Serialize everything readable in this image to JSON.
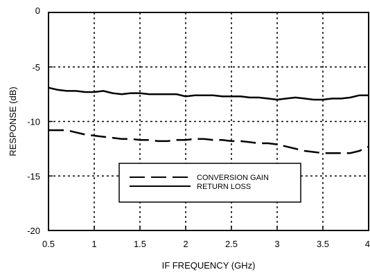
{
  "chart_data": {
    "type": "line",
    "title": "",
    "xlabel": "IF FREQUENCY (GHz)",
    "ylabel": "RESPONSE (dB)",
    "xlim": [
      0.5,
      4
    ],
    "ylim": [
      -20,
      0
    ],
    "xticks": [
      0.5,
      1,
      1.5,
      2,
      2.5,
      3,
      3.5,
      4
    ],
    "xtick_labels": [
      "0.5",
      "1",
      "1.5",
      "2",
      "2.5",
      "3",
      "3.5",
      "4"
    ],
    "yticks": [
      -20,
      -15,
      -10,
      -5,
      0
    ],
    "ytick_labels": [
      "-20",
      "-15",
      "-10",
      "-5",
      "0"
    ],
    "grid": true,
    "legend_position": "lower-center",
    "series": [
      {
        "name": "CONVERSION GAIN",
        "style": "dashed",
        "color": "#000000",
        "x": [
          0.5,
          0.6,
          0.7,
          0.8,
          0.9,
          1.0,
          1.1,
          1.2,
          1.3,
          1.4,
          1.5,
          1.6,
          1.7,
          1.8,
          1.9,
          2.0,
          2.1,
          2.2,
          2.3,
          2.4,
          2.5,
          2.6,
          2.7,
          2.8,
          2.9,
          3.0,
          3.1,
          3.2,
          3.3,
          3.4,
          3.5,
          3.6,
          3.7,
          3.8,
          3.9,
          4.0
        ],
        "y": [
          -10.8,
          -10.8,
          -10.8,
          -11.0,
          -11.2,
          -11.3,
          -11.4,
          -11.5,
          -11.6,
          -11.6,
          -11.7,
          -11.7,
          -11.8,
          -11.8,
          -11.7,
          -11.7,
          -11.6,
          -11.6,
          -11.7,
          -11.7,
          -11.8,
          -11.8,
          -11.9,
          -12.0,
          -12.0,
          -12.1,
          -12.3,
          -12.5,
          -12.7,
          -12.8,
          -12.9,
          -12.9,
          -12.9,
          -12.9,
          -12.7,
          -12.3
        ]
      },
      {
        "name": "RETURN LOSS",
        "style": "solid",
        "color": "#000000",
        "x": [
          0.5,
          0.6,
          0.7,
          0.8,
          0.9,
          1.0,
          1.1,
          1.2,
          1.3,
          1.4,
          1.5,
          1.6,
          1.7,
          1.8,
          1.9,
          2.0,
          2.1,
          2.2,
          2.3,
          2.4,
          2.5,
          2.6,
          2.7,
          2.8,
          2.9,
          3.0,
          3.1,
          3.2,
          3.3,
          3.4,
          3.5,
          3.6,
          3.7,
          3.8,
          3.9,
          4.0
        ],
        "y": [
          -6.9,
          -7.1,
          -7.2,
          -7.2,
          -7.3,
          -7.3,
          -7.2,
          -7.4,
          -7.5,
          -7.4,
          -7.4,
          -7.5,
          -7.5,
          -7.5,
          -7.5,
          -7.7,
          -7.6,
          -7.6,
          -7.6,
          -7.7,
          -7.7,
          -7.7,
          -7.8,
          -7.8,
          -7.9,
          -8.0,
          -7.9,
          -7.8,
          -7.9,
          -8.0,
          -8.0,
          -7.9,
          -7.9,
          -7.8,
          -7.6,
          -7.6
        ]
      }
    ]
  }
}
